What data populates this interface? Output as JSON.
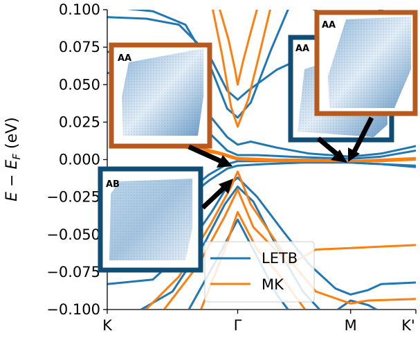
{
  "chart_data": {
    "type": "line",
    "xlabel": "",
    "ylabel_main": "E − E",
    "ylabel_sub": "F",
    "ylabel_unit": " (eV)",
    "ylim": [
      -0.1,
      0.1
    ],
    "x_ticks": [
      {
        "label": "K",
        "pos": 0.0
      },
      {
        "label": "Γ",
        "pos": 1.0
      },
      {
        "label": "M",
        "pos": 1.866
      },
      {
        "label": "K'",
        "pos": 2.366
      }
    ],
    "y_ticks": [
      {
        "label": "0.100",
        "value": 0.1
      },
      {
        "label": "0.075",
        "value": 0.075
      },
      {
        "label": "0.050",
        "value": 0.05
      },
      {
        "label": "0.025",
        "value": 0.025
      },
      {
        "label": "0.000",
        "value": 0.0
      },
      {
        "label": "−0.025",
        "value": -0.025
      },
      {
        "label": "−0.050",
        "value": -0.05
      },
      {
        "label": "−0.075",
        "value": -0.075
      },
      {
        "label": "−0.100",
        "value": -0.1
      }
    ],
    "series": [
      {
        "name": "LETB",
        "color": "#1f77b4",
        "bands": [
          [
            [
              0,
              0.102
            ],
            [
              0.35,
              0.099
            ],
            [
              0.6,
              0.09
            ],
            [
              0.8,
              0.06
            ],
            [
              0.92,
              0.034
            ],
            [
              1.0,
              0.028
            ],
            [
              1.1,
              0.038
            ],
            [
              1.25,
              0.072
            ],
            [
              1.4,
              0.103
            ]
          ],
          [
            [
              0,
              0.095
            ],
            [
              0.3,
              0.094
            ],
            [
              0.55,
              0.09
            ],
            [
              0.78,
              0.07
            ],
            [
              0.92,
              0.046
            ],
            [
              1.0,
              0.04
            ],
            [
              1.08,
              0.046
            ],
            [
              1.3,
              0.06
            ],
            [
              1.55,
              0.07
            ],
            [
              1.866,
              0.074
            ],
            [
              2.0,
              0.072
            ],
            [
              2.366,
              0.066
            ]
          ],
          [
            [
              0,
              0.072
            ],
            [
              0.3,
              0.066
            ],
            [
              0.55,
              0.052
            ],
            [
              0.78,
              0.03
            ],
            [
              0.92,
              0.015
            ],
            [
              1.0,
              0.01
            ],
            [
              1.1,
              0.012
            ],
            [
              1.3,
              0.008
            ],
            [
              1.55,
              0.004
            ],
            [
              1.866,
              0.002
            ],
            [
              2.1,
              0.004
            ],
            [
              2.366,
              0.009
            ]
          ],
          [
            [
              0,
              0.058
            ],
            [
              0.3,
              0.05
            ],
            [
              0.55,
              0.036
            ],
            [
              0.78,
              0.018
            ],
            [
              0.92,
              0.006
            ],
            [
              1.0,
              0.003
            ],
            [
              1.15,
              0.003
            ],
            [
              1.4,
              0.002
            ],
            [
              1.7,
              0.001
            ],
            [
              1.866,
              0.0005
            ],
            [
              2.1,
              0.002
            ],
            [
              2.366,
              0.006
            ]
          ],
          [
            [
              0,
              -0.048
            ],
            [
              0.3,
              -0.04
            ],
            [
              0.55,
              -0.026
            ],
            [
              0.78,
              -0.01
            ],
            [
              0.92,
              -0.003
            ],
            [
              1.0,
              -0.001
            ],
            [
              1.2,
              -0.001
            ],
            [
              1.5,
              -0.001
            ],
            [
              1.866,
              -0.002
            ],
            [
              2.1,
              -0.003
            ],
            [
              2.366,
              -0.005
            ]
          ],
          [
            [
              0,
              -0.052
            ],
            [
              0.3,
              -0.043
            ],
            [
              0.55,
              -0.03
            ],
            [
              0.78,
              -0.014
            ],
            [
              0.92,
              -0.006
            ],
            [
              1.0,
              -0.004
            ],
            [
              1.2,
              -0.003
            ],
            [
              1.5,
              -0.002
            ],
            [
              1.866,
              -0.002
            ],
            [
              2.1,
              -0.003
            ],
            [
              2.366,
              -0.004
            ]
          ],
          [
            [
              0,
              -0.083
            ],
            [
              0.35,
              -0.08
            ],
            [
              0.6,
              -0.06
            ],
            [
              0.8,
              -0.035
            ],
            [
              0.92,
              -0.018
            ],
            [
              1.0,
              -0.012
            ],
            [
              1.15,
              -0.025
            ],
            [
              1.35,
              -0.048
            ],
            [
              1.55,
              -0.07
            ],
            [
              1.75,
              -0.086
            ],
            [
              1.866,
              -0.09
            ],
            [
              2.0,
              -0.087
            ],
            [
              2.1,
              -0.083
            ],
            [
              2.366,
              -0.082
            ]
          ],
          [
            [
              0.2,
              -0.103
            ],
            [
              0.5,
              -0.088
            ],
            [
              0.75,
              -0.055
            ],
            [
              0.9,
              -0.03
            ],
            [
              1.0,
              -0.018
            ],
            [
              1.12,
              -0.028
            ],
            [
              1.3,
              -0.058
            ],
            [
              1.5,
              -0.088
            ],
            [
              1.66,
              -0.103
            ]
          ],
          [
            [
              0.6,
              -0.104
            ],
            [
              0.85,
              -0.065
            ],
            [
              1.0,
              -0.04
            ],
            [
              1.12,
              -0.06
            ],
            [
              1.3,
              -0.09
            ],
            [
              1.42,
              -0.104
            ]
          ],
          [
            [
              1.7,
              -0.104
            ],
            [
              1.866,
              -0.094
            ],
            [
              2.0,
              -0.097
            ],
            [
              2.15,
              -0.104
            ]
          ],
          [
            [
              1.5,
              0.104
            ],
            [
              1.7,
              0.095
            ],
            [
              1.866,
              0.093
            ],
            [
              2.05,
              0.098
            ],
            [
              2.2,
              0.104
            ]
          ]
        ]
      },
      {
        "name": "MK",
        "color": "#ff7f0e",
        "bands": [
          [
            [
              0.85,
              0.104
            ],
            [
              0.93,
              0.08
            ],
            [
              0.98,
              0.06
            ],
            [
              1.0,
              0.05
            ],
            [
              1.04,
              0.065
            ],
            [
              1.1,
              0.085
            ],
            [
              1.16,
              0.104
            ]
          ],
          [
            [
              0.8,
              0.104
            ],
            [
              0.88,
              0.07
            ],
            [
              0.95,
              0.035
            ],
            [
              1.0,
              0.022
            ],
            [
              1.08,
              0.04
            ],
            [
              1.16,
              0.068
            ],
            [
              1.26,
              0.104
            ]
          ],
          [
            [
              0.6,
              0.01
            ],
            [
              0.85,
              0.005
            ],
            [
              1.0,
              0.001
            ],
            [
              1.3,
              0.0
            ],
            [
              1.6,
              0.0
            ],
            [
              1.866,
              -0.001
            ],
            [
              2.1,
              0.0
            ],
            [
              2.366,
              0.001
            ]
          ],
          [
            [
              0.6,
              0.008
            ],
            [
              0.85,
              0.004
            ],
            [
              1.0,
              0.0
            ],
            [
              1.3,
              -0.001
            ],
            [
              1.6,
              -0.001
            ],
            [
              1.866,
              -0.001
            ],
            [
              2.1,
              -0.001
            ],
            [
              2.366,
              0.0
            ]
          ],
          [
            [
              0.25,
              -0.104
            ],
            [
              0.55,
              -0.078
            ],
            [
              0.8,
              -0.042
            ],
            [
              0.95,
              -0.018
            ],
            [
              1.0,
              -0.008
            ],
            [
              1.1,
              -0.03
            ],
            [
              1.35,
              -0.062
            ],
            [
              1.6,
              -0.088
            ],
            [
              1.866,
              -0.096
            ],
            [
              2.0,
              -0.094
            ],
            [
              2.366,
              -0.093
            ]
          ],
          [
            [
              0.4,
              -0.104
            ],
            [
              0.7,
              -0.07
            ],
            [
              0.9,
              -0.038
            ],
            [
              1.0,
              -0.02
            ],
            [
              1.12,
              -0.045
            ],
            [
              1.4,
              -0.07
            ],
            [
              1.6,
              -0.06
            ],
            [
              1.866,
              -0.059
            ],
            [
              2.1,
              -0.058
            ],
            [
              2.366,
              -0.057
            ]
          ],
          [
            [
              0.7,
              -0.104
            ],
            [
              0.9,
              -0.06
            ],
            [
              1.0,
              -0.035
            ],
            [
              1.15,
              -0.06
            ],
            [
              1.35,
              -0.08
            ],
            [
              1.55,
              -0.104
            ]
          ]
        ]
      }
    ],
    "legend": {
      "placement": "lower-center"
    }
  },
  "insets": [
    {
      "label": "AA",
      "border_color": "#b85a1e"
    },
    {
      "label": "AB",
      "border_color": "#0f4d74"
    },
    {
      "label": "AA",
      "border_color": "#0f4d74"
    },
    {
      "label": "AA",
      "border_color": "#b85a1e"
    }
  ]
}
